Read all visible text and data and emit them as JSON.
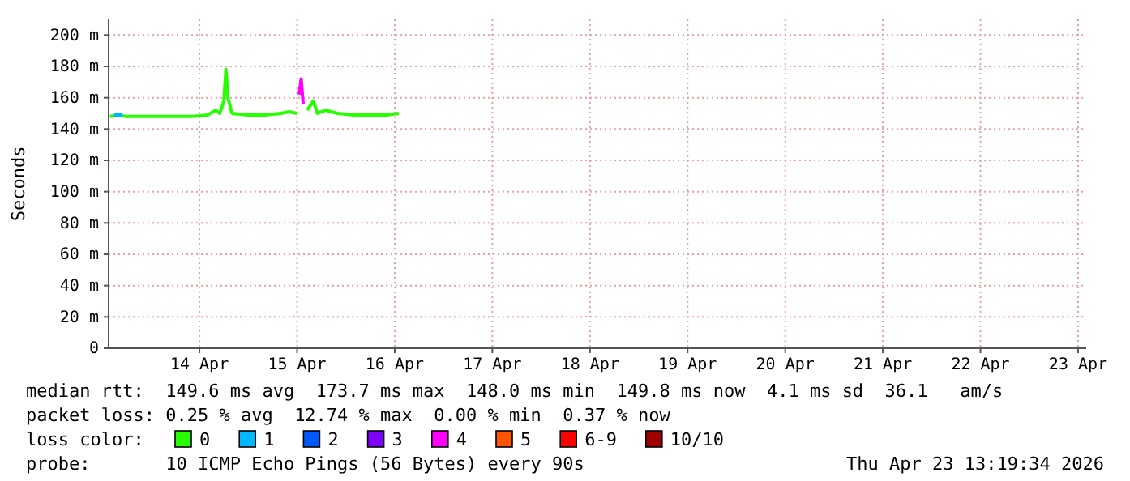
{
  "chart_data": {
    "type": "line",
    "ylabel": "Seconds",
    "legend_title": "loss color:",
    "legend": "bottom",
    "grid": true,
    "line_style": "solid",
    "marker": "none",
    "xlim": [
      "2026-04-13T01:40",
      "2026-04-23T02:00"
    ],
    "xticks": [
      {
        "value": "2026-04-14",
        "label": "14 Apr"
      },
      {
        "value": "2026-04-15",
        "label": "15 Apr"
      },
      {
        "value": "2026-04-16",
        "label": "16 Apr"
      },
      {
        "value": "2026-04-17",
        "label": "17 Apr"
      },
      {
        "value": "2026-04-18",
        "label": "18 Apr"
      },
      {
        "value": "2026-04-19",
        "label": "19 Apr"
      },
      {
        "value": "2026-04-20",
        "label": "20 Apr"
      },
      {
        "value": "2026-04-21",
        "label": "21 Apr"
      },
      {
        "value": "2026-04-22",
        "label": "22 Apr"
      },
      {
        "value": "2026-04-23",
        "label": "23 Apr"
      }
    ],
    "ylim": [
      0,
      210
    ],
    "yticks": [
      0,
      {
        "value": 20,
        "label": "20 m"
      },
      {
        "value": 40,
        "label": "40 m"
      },
      {
        "value": 60,
        "label": "60 m"
      },
      {
        "value": 80,
        "label": "80 m"
      },
      {
        "value": 100,
        "label": "100 m"
      },
      {
        "value": 120,
        "label": "120 m"
      },
      {
        "value": 140,
        "label": "140 m"
      },
      {
        "value": 160,
        "label": "160 m"
      },
      {
        "value": 180,
        "label": "180 m"
      },
      {
        "value": 200,
        "label": "200 m"
      }
    ],
    "series": [
      {
        "name": "0",
        "color": "#26ff00",
        "x": [
          "2026-04-13T02:00",
          "2026-04-13T04:00",
          "2026-04-13T06:00",
          "2026-04-13T10:00",
          "2026-04-13T14:00",
          "2026-04-13T18:00",
          "2026-04-13T22:00",
          "2026-04-14T02:00",
          "2026-04-14T04:00",
          "2026-04-14T05:00",
          "2026-04-14T06:00",
          "2026-04-14T06:30",
          "2026-04-14T07:00",
          "2026-04-14T08:00",
          "2026-04-14T12:00",
          "2026-04-14T16:00",
          "2026-04-14T20:00",
          "2026-04-14T22:00",
          "2026-04-15T00:00",
          "2026-04-15T00:30",
          "2026-04-15T01:00",
          "2026-04-15T01:30",
          "2026-04-15T02:30",
          "2026-04-15T04:00",
          "2026-04-15T05:00",
          "2026-04-15T07:00",
          "2026-04-15T10:00",
          "2026-04-15T14:00",
          "2026-04-15T18:00",
          "2026-04-15T22:00",
          "2026-04-16T01:00"
        ],
        "values": [
          148,
          149,
          148,
          148,
          148,
          148,
          148,
          149,
          152,
          150,
          158,
          178,
          160,
          150,
          149,
          149,
          150,
          151,
          150,
          null,
          null,
          null,
          152,
          158,
          150,
          152,
          150,
          149,
          149,
          149,
          150
        ]
      },
      {
        "name": "1",
        "color": "#00b8ff",
        "x": [
          "2026-04-13T03:00",
          "2026-04-13T05:00"
        ],
        "values": [
          149,
          149
        ]
      },
      {
        "name": "2",
        "color": "#0059ff"
      },
      {
        "name": "3",
        "color": "#7e00ff"
      },
      {
        "name": "4",
        "color": "#ff00fe",
        "x": [
          "2026-04-15T00:30",
          "2026-04-15T01:00",
          "2026-04-15T01:30"
        ],
        "values": [
          162,
          172,
          156
        ]
      },
      {
        "name": "5",
        "color": "#ff5500"
      },
      {
        "name": "6-9",
        "color": "#ff0000"
      },
      {
        "name": "10/10",
        "color": "#a10000"
      }
    ],
    "annotations": [
      "median rtt:  149.6 ms avg  173.7 ms max  148.0 ms min  149.8 ms now  4.1 ms sd  36.1   am/s",
      "packet loss: 0.25 % avg  12.74 % max  0.00 % min  0.37 % now",
      "probe:       10 ICMP Echo Pings (56 Bytes) every 90s",
      "Thu Apr 23 13:19:34 2026"
    ]
  }
}
